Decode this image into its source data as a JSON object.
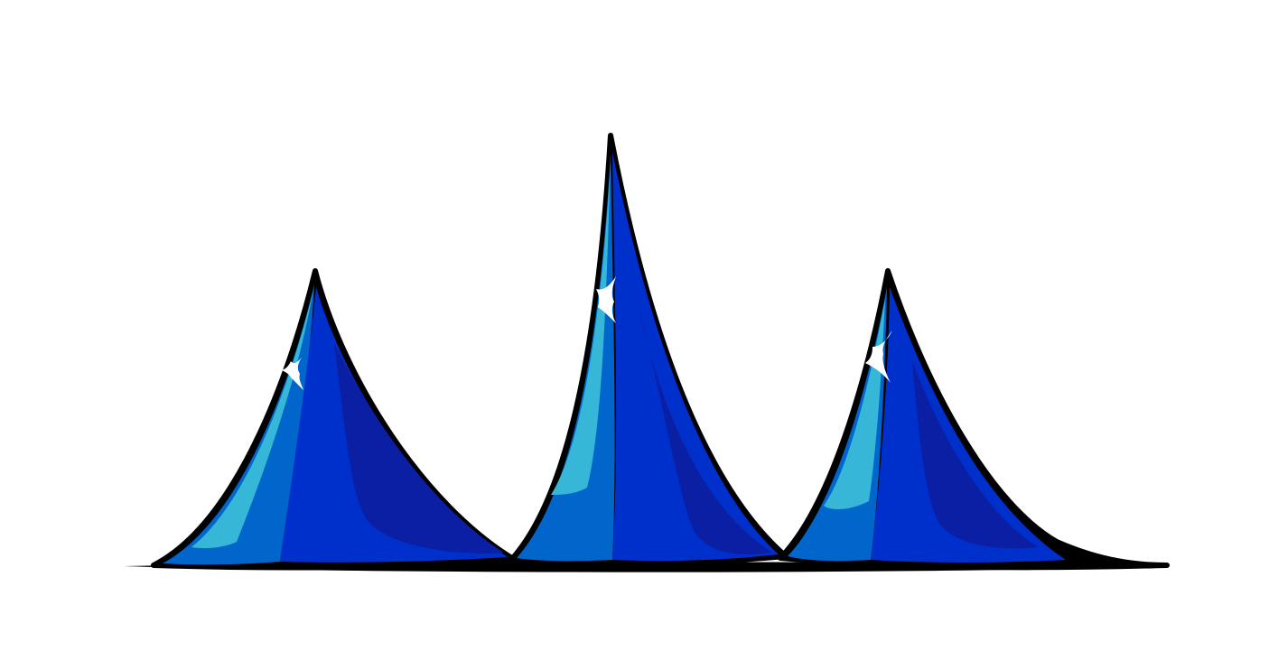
{
  "scene": {
    "background_color": "#ffffff",
    "outline_color": "#000000",
    "sparkle_color": "#ffffff",
    "icon": "three-blue-peaks-illustration"
  },
  "palette": {
    "highlight": "#36b7d8",
    "light": "#0066cc",
    "mid": "#0030cc",
    "shadow": "#0a1fa3"
  },
  "peaks": [
    {
      "name": "left-peak",
      "icon": "peak-icon",
      "has_sparkle": true
    },
    {
      "name": "center-peak",
      "icon": "peak-icon",
      "has_sparkle": true
    },
    {
      "name": "right-peak",
      "icon": "peak-icon",
      "has_sparkle": true
    }
  ]
}
